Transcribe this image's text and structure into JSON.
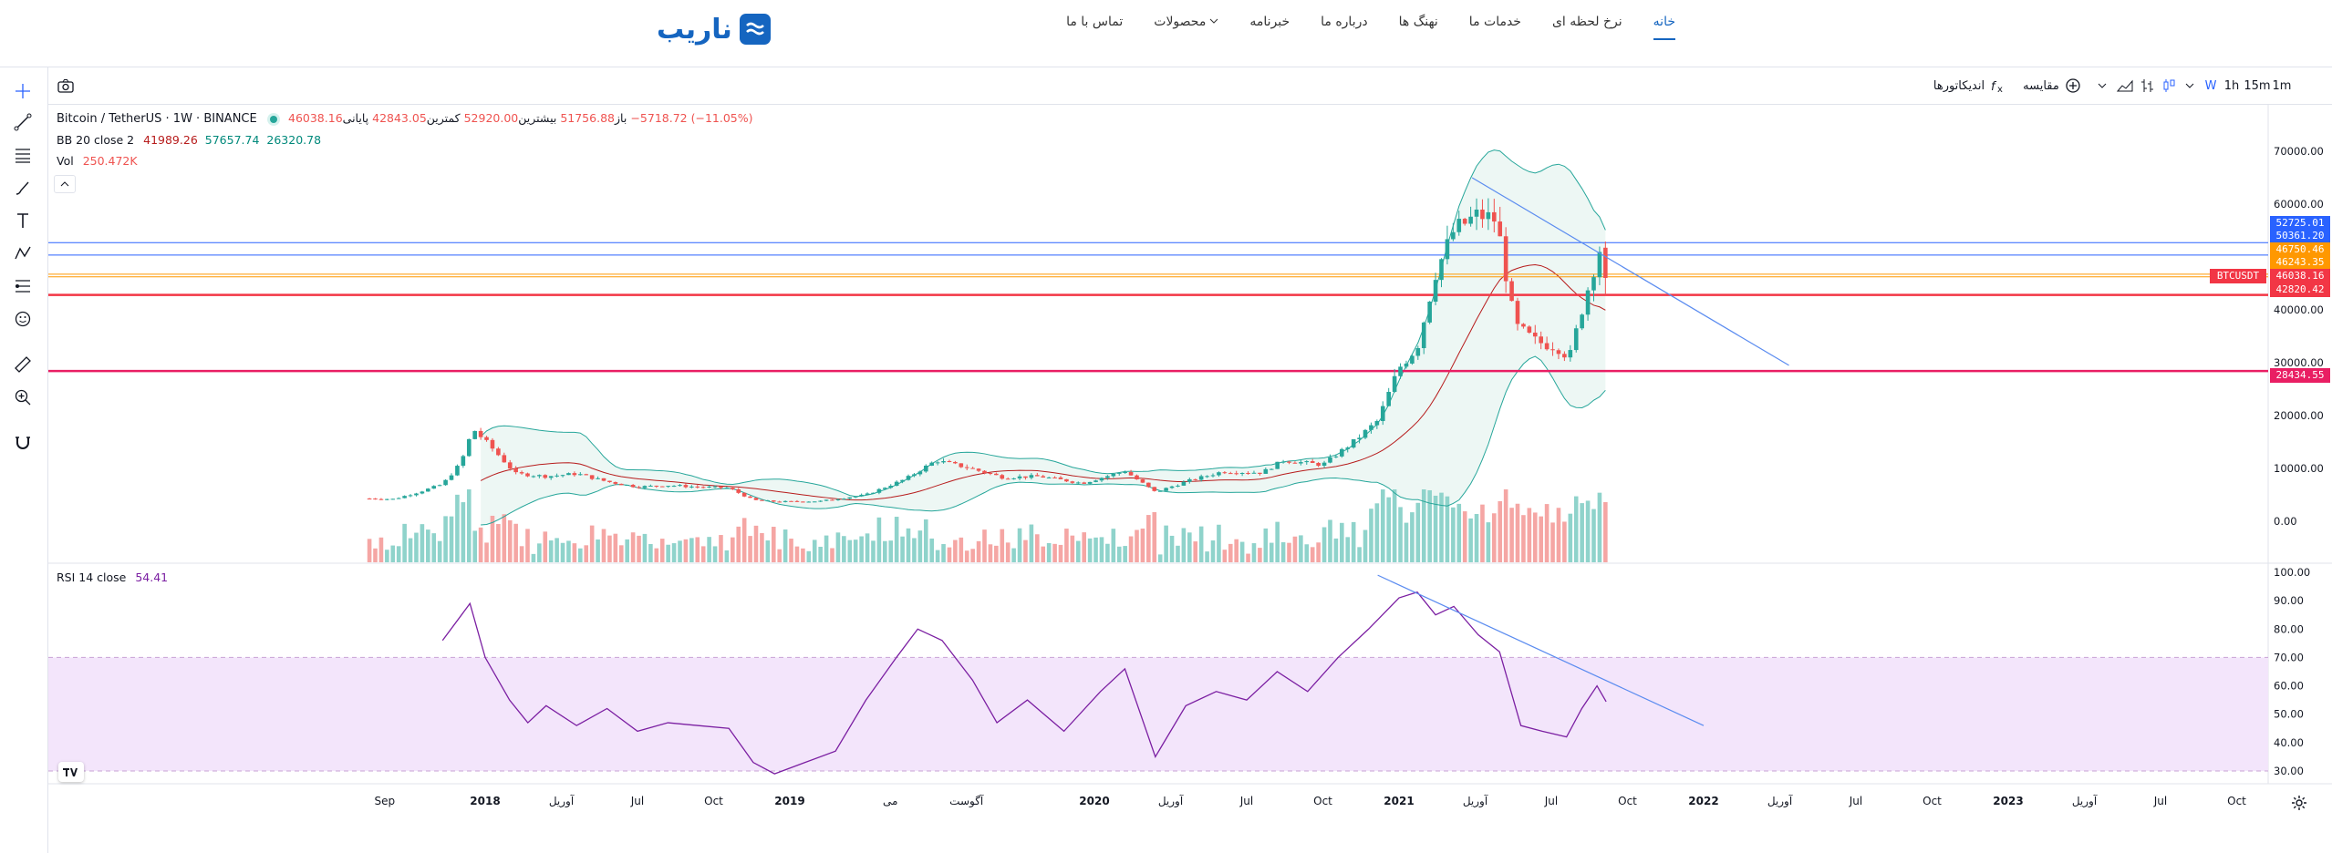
{
  "site": {
    "logo_text": "ناریب",
    "nav": [
      {
        "label": "خانه",
        "active": true
      },
      {
        "label": "نرخ لحظه ای",
        "active": false
      },
      {
        "label": "خدمات ما",
        "active": false
      },
      {
        "label": "نهنگ ها",
        "active": false
      },
      {
        "label": "درباره ما",
        "active": false
      },
      {
        "label": "خبرنامه",
        "active": false
      },
      {
        "label": "محصولات",
        "active": false
      },
      {
        "label": "تماس با ما",
        "active": false
      }
    ]
  },
  "toolbar": {
    "intervals": [
      "1m",
      "15m",
      "1h",
      "W"
    ],
    "active_interval": "W",
    "compare_label": "مقایسه",
    "indicators_label": "اندیکاتورها"
  },
  "legend": {
    "symbol": "Bitcoin / TetherUS · 1W · BINANCE",
    "open_label": "باز",
    "open": "51756.88",
    "high_label": "بیشترین",
    "high": "52920.00",
    "low_label": "کمترین",
    "low": "42843.05",
    "close_label": "پایانی",
    "close": "46038.16",
    "change": "−5718.72 (−11.05%)",
    "bb_label": "BB 20 close 2",
    "bb_basis": "41989.26",
    "bb_upper": "57657.74",
    "bb_lower": "26320.78",
    "vol_label": "Vol",
    "vol": "250.472K",
    "rsi_label": "RSI 14 close",
    "rsi_value": "54.41"
  },
  "price_tags": [
    {
      "value": "52725.01",
      "color": "#2962ff"
    },
    {
      "value": "50361.20",
      "color": "#2962ff"
    },
    {
      "value": "46750.46",
      "color": "#ff9800"
    },
    {
      "value": "46243.35",
      "color": "#ff9800"
    },
    {
      "value": "46038.16",
      "color": "#f23645",
      "label": "BTCUSDT"
    },
    {
      "value": "42820.42",
      "color": "#f23645"
    },
    {
      "value": "28434.55",
      "color": "#e91e63"
    }
  ],
  "chart_data": {
    "type": "candlestick",
    "symbol": "BTCUSDT",
    "interval": "1W",
    "price_axis": {
      "ticks": [
        "70000.00",
        "60000.00",
        "50000.00",
        "40000.00",
        "30000.00",
        "20000.00",
        "10000.00",
        "0.00"
      ],
      "values": [
        70000,
        60000,
        50000,
        40000,
        30000,
        20000,
        10000,
        0
      ]
    },
    "time_axis": [
      {
        "label": "Sep",
        "bold": false,
        "t": 2017.67
      },
      {
        "label": "2018",
        "bold": true,
        "t": 2018.0
      },
      {
        "label": "آوریل",
        "bold": false,
        "t": 2018.25
      },
      {
        "label": "Jul",
        "bold": false,
        "t": 2018.5
      },
      {
        "label": "Oct",
        "bold": false,
        "t": 2018.75
      },
      {
        "label": "2019",
        "bold": true,
        "t": 2019.0
      },
      {
        "label": "می",
        "bold": false,
        "t": 2019.33
      },
      {
        "label": "آگوست",
        "bold": false,
        "t": 2019.58
      },
      {
        "label": "2020",
        "bold": true,
        "t": 2020.0
      },
      {
        "label": "آوریل",
        "bold": false,
        "t": 2020.25
      },
      {
        "label": "Jul",
        "bold": false,
        "t": 2020.5
      },
      {
        "label": "Oct",
        "bold": false,
        "t": 2020.75
      },
      {
        "label": "2021",
        "bold": true,
        "t": 2021.0
      },
      {
        "label": "آوریل",
        "bold": false,
        "t": 2021.25
      },
      {
        "label": "Jul",
        "bold": false,
        "t": 2021.5
      },
      {
        "label": "Oct",
        "bold": false,
        "t": 2021.75
      },
      {
        "label": "2022",
        "bold": true,
        "t": 2022.0
      },
      {
        "label": "آوریل",
        "bold": false,
        "t": 2022.25
      },
      {
        "label": "Jul",
        "bold": false,
        "t": 2022.5
      },
      {
        "label": "Oct",
        "bold": false,
        "t": 2022.75
      },
      {
        "label": "2023",
        "bold": true,
        "t": 2023.0
      },
      {
        "label": "آوریل",
        "bold": false,
        "t": 2023.25
      },
      {
        "label": "Jul",
        "bold": false,
        "t": 2023.5
      },
      {
        "label": "Oct",
        "bold": false,
        "t": 2023.75
      }
    ],
    "close_series": [
      {
        "t": 2017.62,
        "close": 4300
      },
      {
        "t": 2017.7,
        "close": 4200
      },
      {
        "t": 2017.78,
        "close": 5500
      },
      {
        "t": 2017.86,
        "close": 7000
      },
      {
        "t": 2017.92,
        "close": 11000
      },
      {
        "t": 2017.96,
        "close": 17500
      },
      {
        "t": 2018.02,
        "close": 14000
      },
      {
        "t": 2018.1,
        "close": 9000
      },
      {
        "t": 2018.2,
        "close": 8500
      },
      {
        "t": 2018.3,
        "close": 9000
      },
      {
        "t": 2018.4,
        "close": 7500
      },
      {
        "t": 2018.5,
        "close": 6500
      },
      {
        "t": 2018.6,
        "close": 6800
      },
      {
        "t": 2018.7,
        "close": 6500
      },
      {
        "t": 2018.8,
        "close": 6300
      },
      {
        "t": 2018.88,
        "close": 4000
      },
      {
        "t": 2018.96,
        "close": 3700
      },
      {
        "t": 2019.1,
        "close": 3800
      },
      {
        "t": 2019.25,
        "close": 5000
      },
      {
        "t": 2019.38,
        "close": 8000
      },
      {
        "t": 2019.48,
        "close": 11500
      },
      {
        "t": 2019.58,
        "close": 10200
      },
      {
        "t": 2019.7,
        "close": 8300
      },
      {
        "t": 2019.82,
        "close": 8500
      },
      {
        "t": 2019.96,
        "close": 7200
      },
      {
        "t": 2020.1,
        "close": 9500
      },
      {
        "t": 2020.2,
        "close": 5500
      },
      {
        "t": 2020.3,
        "close": 7500
      },
      {
        "t": 2020.42,
        "close": 9400
      },
      {
        "t": 2020.55,
        "close": 9200
      },
      {
        "t": 2020.62,
        "close": 11500
      },
      {
        "t": 2020.75,
        "close": 10700
      },
      {
        "t": 2020.85,
        "close": 15000
      },
      {
        "t": 2020.93,
        "close": 19000
      },
      {
        "t": 2021.0,
        "close": 29000
      },
      {
        "t": 2021.06,
        "close": 33000
      },
      {
        "t": 2021.12,
        "close": 47000
      },
      {
        "t": 2021.18,
        "close": 55000
      },
      {
        "t": 2021.26,
        "close": 58000
      },
      {
        "t": 2021.32,
        "close": 57000
      },
      {
        "t": 2021.38,
        "close": 37000
      },
      {
        "t": 2021.45,
        "close": 34000
      },
      {
        "t": 2021.52,
        "close": 33000
      },
      {
        "t": 2021.56,
        "close": 31000
      },
      {
        "t": 2021.6,
        "close": 40000
      },
      {
        "t": 2021.64,
        "close": 48000
      },
      {
        "t": 2021.66,
        "close": 51757
      },
      {
        "t": 2021.68,
        "close": 46038
      }
    ],
    "volume_series": [],
    "rsi": {
      "axis_ticks": [
        "100.00",
        "90.00",
        "80.00",
        "70.00",
        "60.00",
        "50.00",
        "40.00",
        "30.00"
      ],
      "axis_values": [
        100,
        90,
        80,
        70,
        60,
        50,
        40,
        30
      ],
      "upper_band": 70,
      "lower_band": 30,
      "series": [
        {
          "t": 2017.86,
          "v": 76
        },
        {
          "t": 2017.95,
          "v": 89
        },
        {
          "t": 2018.0,
          "v": 70
        },
        {
          "t": 2018.08,
          "v": 55
        },
        {
          "t": 2018.14,
          "v": 47
        },
        {
          "t": 2018.2,
          "v": 53
        },
        {
          "t": 2018.3,
          "v": 46
        },
        {
          "t": 2018.4,
          "v": 52
        },
        {
          "t": 2018.5,
          "v": 44
        },
        {
          "t": 2018.6,
          "v": 47
        },
        {
          "t": 2018.7,
          "v": 46
        },
        {
          "t": 2018.8,
          "v": 45
        },
        {
          "t": 2018.88,
          "v": 33
        },
        {
          "t": 2018.95,
          "v": 29
        },
        {
          "t": 2019.05,
          "v": 33
        },
        {
          "t": 2019.15,
          "v": 37
        },
        {
          "t": 2019.25,
          "v": 55
        },
        {
          "t": 2019.35,
          "v": 70
        },
        {
          "t": 2019.42,
          "v": 80
        },
        {
          "t": 2019.5,
          "v": 76
        },
        {
          "t": 2019.6,
          "v": 62
        },
        {
          "t": 2019.68,
          "v": 47
        },
        {
          "t": 2019.78,
          "v": 55
        },
        {
          "t": 2019.9,
          "v": 44
        },
        {
          "t": 2020.02,
          "v": 58
        },
        {
          "t": 2020.1,
          "v": 66
        },
        {
          "t": 2020.2,
          "v": 35
        },
        {
          "t": 2020.3,
          "v": 53
        },
        {
          "t": 2020.4,
          "v": 58
        },
        {
          "t": 2020.5,
          "v": 55
        },
        {
          "t": 2020.6,
          "v": 65
        },
        {
          "t": 2020.7,
          "v": 58
        },
        {
          "t": 2020.8,
          "v": 70
        },
        {
          "t": 2020.9,
          "v": 80
        },
        {
          "t": 2021.0,
          "v": 91
        },
        {
          "t": 2021.06,
          "v": 93
        },
        {
          "t": 2021.12,
          "v": 85
        },
        {
          "t": 2021.18,
          "v": 88
        },
        {
          "t": 2021.26,
          "v": 78
        },
        {
          "t": 2021.33,
          "v": 72
        },
        {
          "t": 2021.4,
          "v": 46
        },
        {
          "t": 2021.47,
          "v": 44
        },
        {
          "t": 2021.55,
          "v": 42
        },
        {
          "t": 2021.6,
          "v": 52
        },
        {
          "t": 2021.65,
          "v": 60
        },
        {
          "t": 2021.68,
          "v": 54.41
        }
      ]
    },
    "horizontal_lines": [
      {
        "price": 52725.01,
        "color": "#2962ff"
      },
      {
        "price": 50361.2,
        "color": "#2962ff"
      },
      {
        "price": 46750.46,
        "color": "#ff9800"
      },
      {
        "price": 46243.35,
        "color": "#ff9800"
      },
      {
        "price": 42820.42,
        "color": "#f23645"
      },
      {
        "price": 28434.55,
        "color": "#e91e63"
      }
    ],
    "colors": {
      "up": "#26a69a",
      "down": "#ef5350",
      "bb_fill": "#e8f5f1",
      "bb_line": "#26a69a",
      "basis": "#b71c1c",
      "rsi": "#7b1fa2",
      "rsi_band": "#f3e5fb",
      "trendline": "#5b8cf0"
    }
  }
}
